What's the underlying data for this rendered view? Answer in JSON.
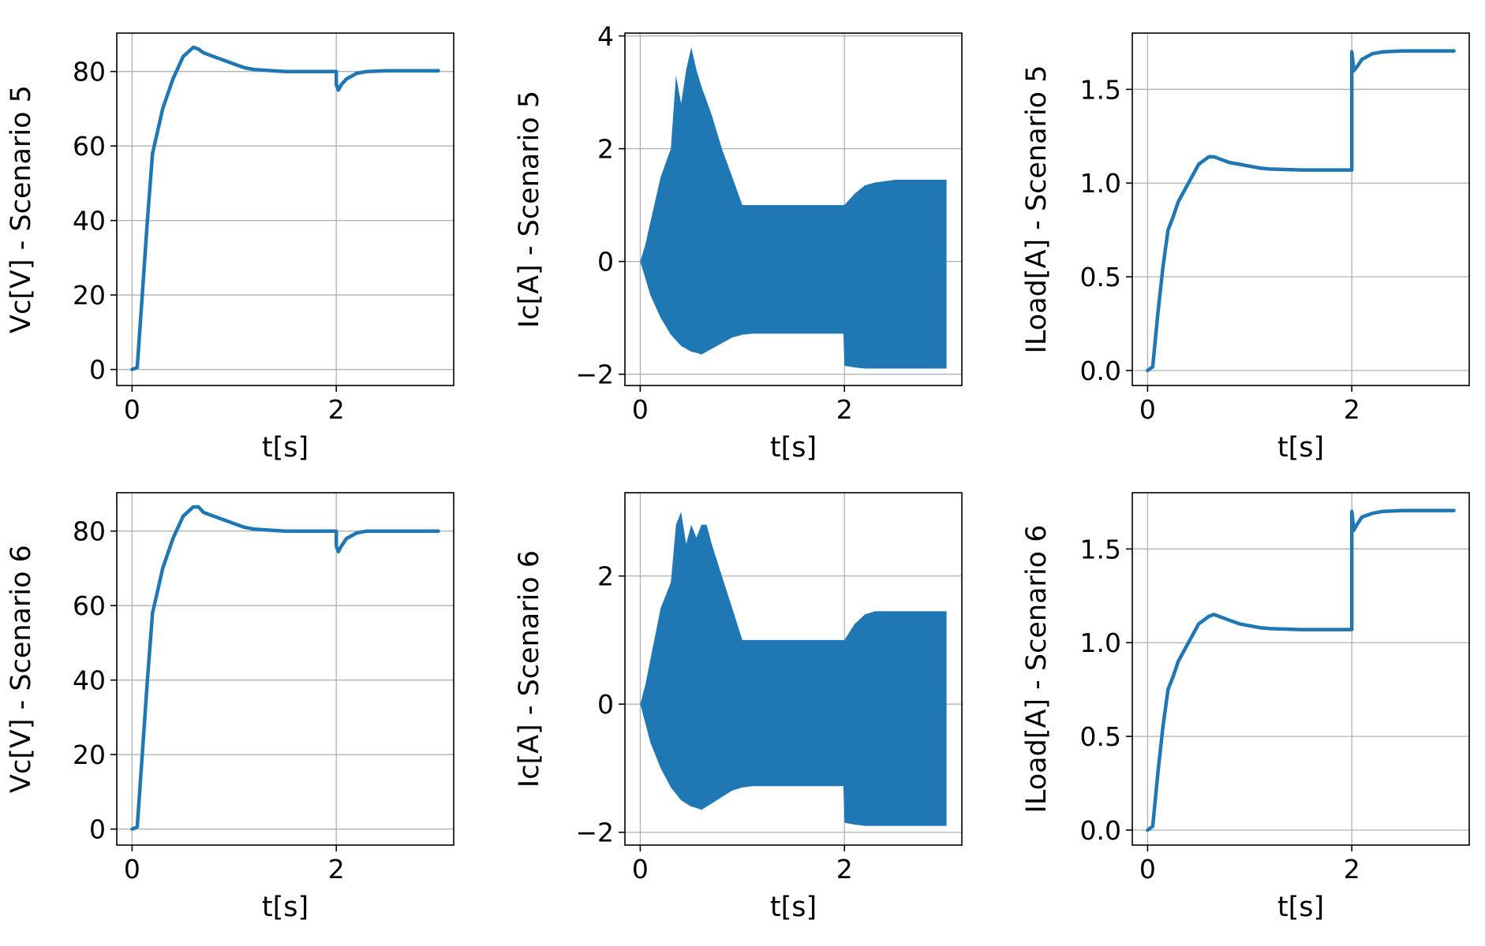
{
  "figure": {
    "layout": "2x3 grid of subplots"
  },
  "colors": {
    "series": "#1f77b4",
    "grid": "#b0b0b0",
    "frame": "#000000"
  },
  "chart_data": [
    {
      "type": "line",
      "xlabel": "t[s]",
      "ylabel": "Vc[V] - Scenario 5",
      "xlim": [
        -0.15,
        3.15
      ],
      "ylim": [
        -4.3,
        90.3
      ],
      "xticks": [
        0,
        2
      ],
      "xtick_labels": [
        "0",
        "2"
      ],
      "yticks": [
        0,
        20,
        40,
        60,
        80
      ],
      "ytick_labels": [
        "0",
        "20",
        "40",
        "60",
        "80"
      ],
      "grid": true,
      "x": [
        0,
        0.05,
        0.1,
        0.15,
        0.2,
        0.25,
        0.3,
        0.4,
        0.5,
        0.6,
        0.65,
        0.7,
        0.8,
        0.9,
        1.0,
        1.1,
        1.2,
        1.5,
        2.0,
        2.0,
        2.02,
        2.05,
        2.1,
        2.2,
        2.3,
        2.5,
        3.0
      ],
      "series": [
        {
          "values": [
            0,
            0.5,
            20,
            40,
            58,
            64,
            70,
            78,
            84,
            86.5,
            86,
            85,
            84,
            83,
            82,
            81,
            80.5,
            80,
            80,
            76.5,
            75,
            76.5,
            78,
            79.5,
            80,
            80.2,
            80.2
          ]
        }
      ]
    },
    {
      "type": "area",
      "xlabel": "t[s]",
      "ylabel": "Ic[A] - Scenario 5",
      "xlim": [
        -0.15,
        3.15
      ],
      "ylim": [
        -2.2,
        4.05
      ],
      "xticks": [
        0,
        2
      ],
      "xtick_labels": [
        "0",
        "2"
      ],
      "yticks": [
        -2,
        0,
        2,
        4
      ],
      "ytick_labels": [
        "−2",
        "0",
        "2",
        "4"
      ],
      "grid": true,
      "x": [
        0,
        0.05,
        0.1,
        0.2,
        0.3,
        0.35,
        0.4,
        0.45,
        0.5,
        0.55,
        0.6,
        0.7,
        0.8,
        0.9,
        1.0,
        1.1,
        1.5,
        1.99,
        2.0,
        2.1,
        2.2,
        2.3,
        2.5,
        3.0
      ],
      "series": [
        {
          "values": [
            0,
            0.3,
            0.7,
            1.5,
            2.0,
            3.3,
            2.8,
            3.4,
            3.8,
            3.4,
            3.1,
            2.6,
            2.0,
            1.5,
            1.0,
            1.0,
            1.0,
            1.0,
            1.0,
            1.2,
            1.35,
            1.4,
            1.45,
            1.45
          ]
        },
        {
          "values": [
            0,
            -0.3,
            -0.6,
            -1.0,
            -1.3,
            -1.4,
            -1.5,
            -1.55,
            -1.6,
            -1.62,
            -1.65,
            -1.55,
            -1.45,
            -1.35,
            -1.3,
            -1.28,
            -1.28,
            -1.28,
            -1.85,
            -1.88,
            -1.9,
            -1.9,
            -1.9,
            -1.9
          ]
        }
      ]
    },
    {
      "type": "line",
      "xlabel": "t[s]",
      "ylabel": "ILoad[A] - Scenario 5",
      "xlim": [
        -0.15,
        3.15
      ],
      "ylim": [
        -0.08,
        1.8
      ],
      "xticks": [
        0,
        2
      ],
      "xtick_labels": [
        "0",
        "2"
      ],
      "yticks": [
        0.0,
        0.5,
        1.0,
        1.5
      ],
      "ytick_labels": [
        "0.0",
        "0.5",
        "1.0",
        "1.5"
      ],
      "grid": true,
      "x": [
        0,
        0.05,
        0.1,
        0.15,
        0.2,
        0.25,
        0.3,
        0.4,
        0.5,
        0.6,
        0.65,
        0.7,
        0.8,
        0.9,
        1.0,
        1.1,
        1.2,
        1.5,
        2.0,
        2.0,
        2.02,
        2.05,
        2.1,
        2.2,
        2.3,
        2.5,
        3.0
      ],
      "series": [
        {
          "values": [
            0,
            0.02,
            0.3,
            0.55,
            0.75,
            0.82,
            0.9,
            1.0,
            1.1,
            1.14,
            1.14,
            1.13,
            1.11,
            1.1,
            1.09,
            1.08,
            1.075,
            1.07,
            1.07,
            1.7,
            1.6,
            1.62,
            1.66,
            1.69,
            1.7,
            1.705,
            1.705
          ]
        }
      ]
    },
    {
      "type": "line",
      "xlabel": "t[s]",
      "ylabel": "Vc[V] - Scenario 6",
      "xlim": [
        -0.15,
        3.15
      ],
      "ylim": [
        -4.3,
        90.3
      ],
      "xticks": [
        0,
        2
      ],
      "xtick_labels": [
        "0",
        "2"
      ],
      "yticks": [
        0,
        20,
        40,
        60,
        80
      ],
      "ytick_labels": [
        "0",
        "20",
        "40",
        "60",
        "80"
      ],
      "grid": true,
      "x": [
        0,
        0.05,
        0.1,
        0.15,
        0.2,
        0.25,
        0.3,
        0.4,
        0.5,
        0.6,
        0.65,
        0.7,
        0.8,
        0.9,
        1.0,
        1.1,
        1.2,
        1.5,
        2.0,
        2.0,
        2.02,
        2.05,
        2.1,
        2.2,
        2.3,
        2.5,
        3.0
      ],
      "series": [
        {
          "values": [
            0,
            0.5,
            20,
            40,
            58,
            64,
            70,
            78,
            84,
            86.5,
            86.5,
            85,
            84,
            83,
            82,
            81,
            80.5,
            80,
            80,
            76,
            74.5,
            76,
            78,
            79.5,
            80,
            80,
            80
          ]
        }
      ]
    },
    {
      "type": "area",
      "xlabel": "t[s]",
      "ylabel": "Ic[A] - Scenario 6",
      "xlim": [
        -0.15,
        3.15
      ],
      "ylim": [
        -2.2,
        3.3
      ],
      "xticks": [
        0,
        2
      ],
      "xtick_labels": [
        "0",
        "2"
      ],
      "yticks": [
        -2,
        0,
        2
      ],
      "ytick_labels": [
        "−2",
        "0",
        "2"
      ],
      "grid": true,
      "x": [
        0,
        0.05,
        0.1,
        0.2,
        0.3,
        0.35,
        0.4,
        0.45,
        0.5,
        0.55,
        0.6,
        0.65,
        0.7,
        0.8,
        0.9,
        1.0,
        1.1,
        1.5,
        1.99,
        2.0,
        2.1,
        2.2,
        2.3,
        2.5,
        3.0
      ],
      "series": [
        {
          "values": [
            0,
            0.3,
            0.7,
            1.5,
            1.9,
            2.8,
            3.0,
            2.5,
            2.8,
            2.6,
            2.8,
            2.8,
            2.5,
            2.0,
            1.5,
            1.0,
            1.0,
            1.0,
            1.0,
            1.0,
            1.25,
            1.4,
            1.45,
            1.45,
            1.45
          ]
        },
        {
          "values": [
            0,
            -0.3,
            -0.6,
            -1.0,
            -1.3,
            -1.4,
            -1.5,
            -1.55,
            -1.6,
            -1.62,
            -1.65,
            -1.6,
            -1.55,
            -1.45,
            -1.35,
            -1.3,
            -1.28,
            -1.28,
            -1.28,
            -1.85,
            -1.88,
            -1.9,
            -1.9,
            -1.9,
            -1.9
          ]
        }
      ]
    },
    {
      "type": "line",
      "xlabel": "t[s]",
      "ylabel": "ILoad[A] - Scenario 6",
      "xlim": [
        -0.15,
        3.15
      ],
      "ylim": [
        -0.08,
        1.8
      ],
      "xticks": [
        0,
        2
      ],
      "xtick_labels": [
        "0",
        "2"
      ],
      "yticks": [
        0.0,
        0.5,
        1.0,
        1.5
      ],
      "ytick_labels": [
        "0.0",
        "0.5",
        "1.0",
        "1.5"
      ],
      "grid": true,
      "x": [
        0,
        0.05,
        0.1,
        0.15,
        0.2,
        0.25,
        0.3,
        0.4,
        0.5,
        0.6,
        0.65,
        0.7,
        0.8,
        0.9,
        1.0,
        1.1,
        1.2,
        1.5,
        2.0,
        2.0,
        2.02,
        2.05,
        2.1,
        2.2,
        2.3,
        2.5,
        3.0
      ],
      "series": [
        {
          "values": [
            0,
            0.02,
            0.3,
            0.55,
            0.75,
            0.82,
            0.9,
            1.0,
            1.1,
            1.14,
            1.15,
            1.14,
            1.12,
            1.1,
            1.09,
            1.08,
            1.075,
            1.07,
            1.07,
            1.7,
            1.6,
            1.63,
            1.67,
            1.69,
            1.7,
            1.705,
            1.705
          ]
        }
      ]
    }
  ]
}
